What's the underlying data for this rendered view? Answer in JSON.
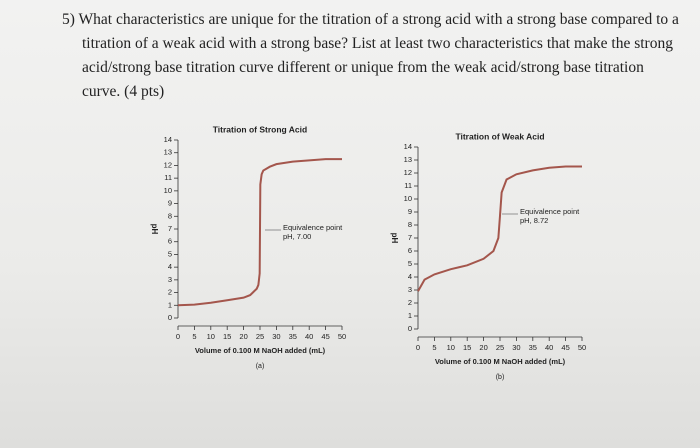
{
  "question": {
    "text": "5) What characteristics are unique for the titration of a strong acid with a strong base compared to a titration of a weak acid with a strong base? List at least two characteristics that make the strong acid/strong base titration curve different or unique from the weak acid/strong base titration curve. (4 pts)"
  },
  "chart_data": [
    {
      "type": "line",
      "title": "Titration of Strong Acid",
      "x_label": "Volume of 0.100 M NaOH added (mL)",
      "y_label": "pH",
      "subtitle": "(a)",
      "annotation": "Equivalence point pH, 7.00",
      "color": "#a4564c",
      "x": [
        0,
        5,
        10,
        15,
        20,
        22,
        24,
        24.5,
        24.9,
        25,
        25.1,
        25.5,
        26,
        28,
        30,
        35,
        40,
        45,
        50
      ],
      "values": [
        1,
        1.05,
        1.2,
        1.4,
        1.6,
        1.8,
        2.3,
        2.6,
        3.5,
        7,
        10.5,
        11.3,
        11.6,
        11.9,
        12.1,
        12.3,
        12.4,
        12.5,
        12.5
      ],
      "xlim": [
        0,
        50
      ],
      "xticks": [
        0,
        5,
        10,
        15,
        20,
        25,
        30,
        35,
        40,
        45,
        50
      ],
      "ylim": [
        0,
        14
      ],
      "yticks": [
        0,
        1,
        2,
        3,
        4,
        5,
        6,
        7,
        8,
        9,
        10,
        11,
        12,
        13,
        14
      ]
    },
    {
      "type": "line",
      "title": "Titration of Weak Acid",
      "x_label": "Volume of 0.100 M NaOH added (mL)",
      "y_label": "pH",
      "subtitle": "(b)",
      "annotation": "Equivalence point pH, 8.72",
      "color": "#a4564c",
      "x": [
        0,
        2,
        5,
        10,
        12.5,
        15,
        20,
        23,
        24.5,
        25,
        25.5,
        27,
        30,
        35,
        40,
        45,
        50
      ],
      "values": [
        2.9,
        3.8,
        4.2,
        4.6,
        4.75,
        4.9,
        5.4,
        6.0,
        7.0,
        8.72,
        10.5,
        11.5,
        11.9,
        12.2,
        12.4,
        12.5,
        12.5
      ],
      "xlim": [
        0,
        50
      ],
      "xticks": [
        0,
        5,
        10,
        15,
        20,
        25,
        30,
        35,
        40,
        45,
        50
      ],
      "ylim": [
        0,
        14
      ],
      "yticks": [
        0,
        1,
        2,
        3,
        4,
        5,
        6,
        7,
        8,
        9,
        10,
        11,
        12,
        13,
        14
      ]
    }
  ]
}
